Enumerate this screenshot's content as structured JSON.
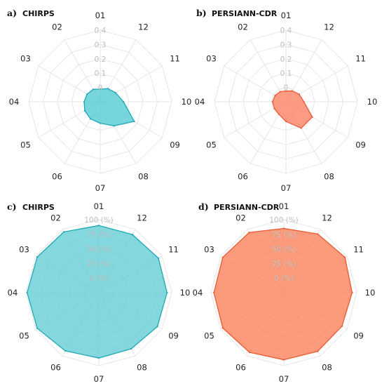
{
  "chart_data": [
    {
      "panel_letter": "a)",
      "title": "CHIRPS",
      "type": "radar",
      "categories": [
        "01",
        "02",
        "03",
        "04",
        "05",
        "06",
        "07",
        "08",
        "09",
        "10",
        "11",
        "12"
      ],
      "rlim": [
        0,
        0.4
      ],
      "ticks": [
        "0",
        "0.1",
        "0.2",
        "0.3",
        "0.4"
      ],
      "values": [
        0.07,
        0.08,
        0.085,
        0.09,
        0.1,
        0.11,
        0.12,
        0.155,
        0.22,
        0.13,
        0.1,
        0.085
      ],
      "color": "#5ecfd6",
      "edge_color": "#1ba8b5"
    },
    {
      "panel_letter": "b)",
      "title": "PERSIANN-CDR",
      "type": "radar",
      "categories": [
        "01",
        "02",
        "03",
        "04",
        "05",
        "06",
        "07",
        "08",
        "09",
        "10",
        "11",
        "12"
      ],
      "rlim": [
        0,
        0.4
      ],
      "ticks": [
        "0",
        "0.1",
        "0.2",
        "0.3",
        "0.4"
      ],
      "values": [
        0.06,
        0.065,
        0.07,
        0.075,
        0.075,
        0.08,
        0.11,
        0.17,
        0.17,
        0.1,
        0.085,
        0.07
      ],
      "color": "#fa8a6e",
      "edge_color": "#ee5a36"
    },
    {
      "panel_letter": "c)",
      "title": "CHIRPS",
      "type": "radar",
      "categories": [
        "01",
        "02",
        "03",
        "04",
        "05",
        "06",
        "07",
        "08",
        "09",
        "10",
        "11",
        "12"
      ],
      "rlim": [
        -25,
        100
      ],
      "ticks": [
        "0 (%)",
        "25 (%)",
        "50 (%)",
        "75 (%)",
        "100 (%)"
      ],
      "values": [
        90,
        95,
        97,
        98,
        97,
        90,
        87,
        86,
        91,
        92,
        93,
        90
      ],
      "color": "#6fd0d6",
      "edge_color": "#1ba8b5"
    },
    {
      "panel_letter": "d)",
      "title": "PERSIANN-CDR",
      "type": "radar",
      "categories": [
        "01",
        "02",
        "03",
        "04",
        "05",
        "06",
        "07",
        "08",
        "09",
        "10",
        "11",
        "12"
      ],
      "rlim": [
        -25,
        100
      ],
      "ticks": [
        "0 (%)",
        "25 (%)",
        "50 (%)",
        "75 (%)",
        "100 (%)"
      ],
      "values": [
        85,
        94,
        96,
        95,
        96,
        93,
        90,
        91,
        90,
        92,
        96,
        91
      ],
      "color": "#fb8a64",
      "edge_color": "#e85a30"
    }
  ]
}
